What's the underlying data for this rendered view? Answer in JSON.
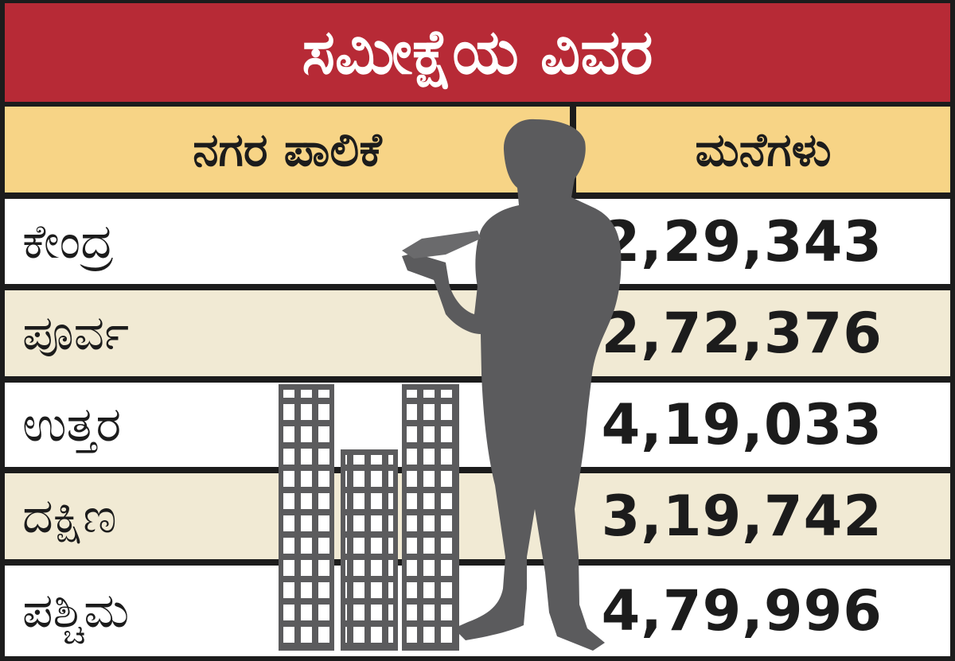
{
  "title": "ಸಮೀಕ್ಷೆಯ ವಿವರ",
  "headers": {
    "zone": "ನಗರ ಪಾಲಿಕೆ",
    "houses": "ಮನೆಗಳು"
  },
  "rows": [
    {
      "zone": "ಕೇಂದ್ರ",
      "houses": "2,29,343"
    },
    {
      "zone": "ಪೂರ್ವ",
      "houses": "2,72,376"
    },
    {
      "zone": "ಉತ್ತರ",
      "houses": "4,19,033"
    },
    {
      "zone": "ದಕ್ಷಿಣ",
      "houses": "3,19,742"
    },
    {
      "zone": "ಪಶ್ಚಿಮ",
      "houses": "4,79,996"
    }
  ],
  "colors": {
    "title_bg": "#b72a36",
    "header_bg": "#f7d486",
    "row_alt_bg": "#f1ead4",
    "silhouette": "#5b5b5d",
    "border": "#1c1c1c"
  },
  "icons": [
    "buildings-icon",
    "person-with-tablet-silhouette"
  ]
}
